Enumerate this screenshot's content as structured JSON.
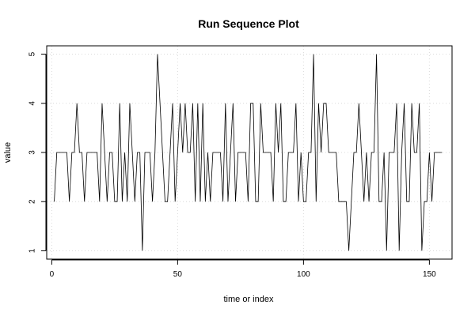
{
  "chart_data": {
    "type": "line",
    "title": "Run Sequence Plot",
    "xlabel": "time or index",
    "ylabel": "value",
    "xlim": [
      -2,
      159
    ],
    "ylim": [
      0.83,
      5.17
    ],
    "xticks": [
      0,
      50,
      100,
      150
    ],
    "yticks": [
      1,
      2,
      3,
      4,
      5
    ],
    "grid": true,
    "series": [
      {
        "x_start": 1,
        "values": [
          2,
          3,
          3,
          3,
          3,
          3,
          2,
          3,
          3,
          4,
          3,
          3,
          2,
          3,
          3,
          3,
          3,
          3,
          2,
          4,
          3,
          2,
          3,
          3,
          2,
          2,
          4,
          2,
          3,
          2,
          4,
          3,
          2,
          3,
          3,
          1,
          3,
          3,
          3,
          2,
          3,
          5,
          4,
          3,
          2,
          2,
          3,
          4,
          2,
          3,
          4,
          3,
          4,
          3,
          3,
          4,
          2,
          4,
          2,
          4,
          2,
          3,
          2,
          3,
          3,
          3,
          3,
          2,
          4,
          2,
          3,
          4,
          2,
          3,
          3,
          3,
          3,
          2,
          4,
          4,
          2,
          2,
          4,
          3,
          3,
          3,
          3,
          2,
          4,
          3,
          4,
          2,
          2,
          3,
          3,
          3,
          4,
          2,
          3,
          2,
          2,
          3,
          3,
          5,
          2,
          4,
          3,
          4,
          4,
          3,
          3,
          3,
          3,
          2,
          2,
          2,
          2,
          1,
          2,
          3,
          3,
          4,
          3,
          2,
          3,
          2,
          3,
          3,
          5,
          2,
          2,
          3,
          1,
          3,
          3,
          3,
          4,
          1,
          3,
          4,
          2,
          2,
          4,
          3,
          3,
          4,
          1,
          2,
          2,
          3,
          2,
          3,
          3,
          3,
          3
        ]
      }
    ]
  }
}
